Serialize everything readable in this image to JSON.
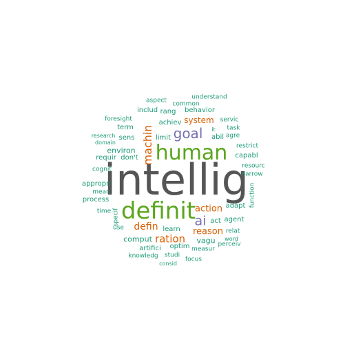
{
  "colors": {
    "gray": "#555555",
    "green": "#5aa61e",
    "teal": "#1b9a76",
    "purple": "#7470b3",
    "orange": "#d95f02"
  },
  "words": [
    {
      "text": "intellig",
      "color": "gray"
    },
    {
      "text": "definit",
      "color": "green"
    },
    {
      "text": "human",
      "color": "green"
    },
    {
      "text": "goal",
      "color": "purple"
    },
    {
      "text": "ai",
      "color": "purple"
    },
    {
      "text": "machin",
      "color": "orange"
    },
    {
      "text": "ration",
      "color": "orange"
    },
    {
      "text": "defin",
      "color": "orange"
    },
    {
      "text": "reason",
      "color": "orange"
    },
    {
      "text": "action",
      "color": "orange"
    },
    {
      "text": "system",
      "color": "orange"
    },
    {
      "text": "understand",
      "color": "teal"
    },
    {
      "text": "aspect",
      "color": "teal"
    },
    {
      "text": "common",
      "color": "teal"
    },
    {
      "text": "includ",
      "color": "teal"
    },
    {
      "text": "rang",
      "color": "teal"
    },
    {
      "text": "behavior",
      "color": "teal"
    },
    {
      "text": "foresight",
      "color": "teal"
    },
    {
      "text": "achiev",
      "color": "teal"
    },
    {
      "text": "servic",
      "color": "teal"
    },
    {
      "text": "term",
      "color": "teal"
    },
    {
      "text": "it",
      "color": "teal"
    },
    {
      "text": "task",
      "color": "teal"
    },
    {
      "text": "research",
      "color": "teal"
    },
    {
      "text": "sens",
      "color": "teal"
    },
    {
      "text": "abil",
      "color": "teal"
    },
    {
      "text": "agre",
      "color": "teal"
    },
    {
      "text": "domain",
      "color": "teal"
    },
    {
      "text": "limit",
      "color": "teal"
    },
    {
      "text": "environ",
      "color": "teal"
    },
    {
      "text": "restrict",
      "color": "teal"
    },
    {
      "text": "requir",
      "color": "teal"
    },
    {
      "text": "don't",
      "color": "teal"
    },
    {
      "text": "capabl",
      "color": "teal"
    },
    {
      "text": "cognit",
      "color": "teal"
    },
    {
      "text": "resourc",
      "color": "teal"
    },
    {
      "text": "narrow",
      "color": "teal"
    },
    {
      "text": "appropri",
      "color": "teal"
    },
    {
      "text": "function",
      "color": "teal"
    },
    {
      "text": "mean",
      "color": "teal"
    },
    {
      "text": "process",
      "color": "teal"
    },
    {
      "text": "adapt",
      "color": "teal"
    },
    {
      "text": "time",
      "color": "teal"
    },
    {
      "text": "specif",
      "color": "teal"
    },
    {
      "text": "act",
      "color": "teal"
    },
    {
      "text": "agent",
      "color": "teal"
    },
    {
      "text": "use",
      "color": "teal"
    },
    {
      "text": "learn",
      "color": "teal"
    },
    {
      "text": "relat",
      "color": "teal"
    },
    {
      "text": "comput",
      "color": "teal"
    },
    {
      "text": "vagu",
      "color": "teal"
    },
    {
      "text": "word",
      "color": "teal"
    },
    {
      "text": "perceiv",
      "color": "teal"
    },
    {
      "text": "artifici",
      "color": "teal"
    },
    {
      "text": "optim",
      "color": "teal"
    },
    {
      "text": "measur",
      "color": "teal"
    },
    {
      "text": "knowledg",
      "color": "teal"
    },
    {
      "text": "studi",
      "color": "teal"
    },
    {
      "text": "focus",
      "color": "teal"
    },
    {
      "text": "consid",
      "color": "teal"
    }
  ]
}
